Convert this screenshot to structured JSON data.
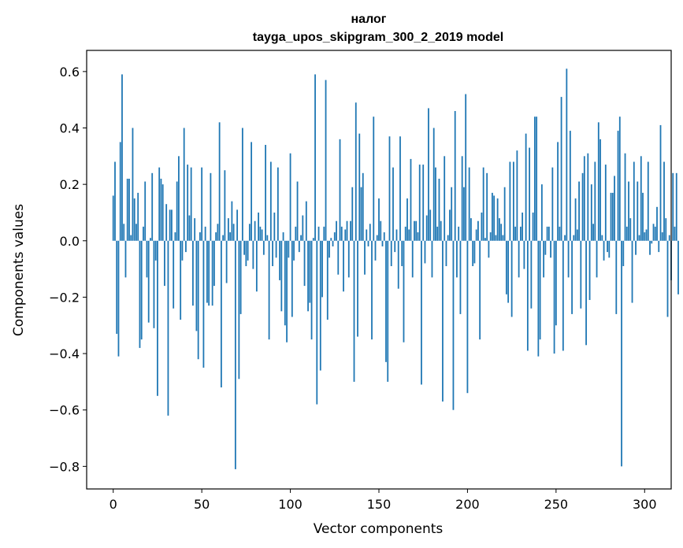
{
  "chart_data": {
    "type": "bar",
    "title": "налог",
    "subtitle": "tayga_upos_skipgram_300_2_2019 model",
    "xlabel": "Vector components",
    "ylabel": "Components values",
    "xlim": [
      -15,
      315
    ],
    "ylim": [
      -0.88,
      0.675
    ],
    "xticks": [
      0,
      50,
      100,
      150,
      200,
      250,
      300
    ],
    "xtick_labels": [
      "0",
      "50",
      "100",
      "150",
      "200",
      "250",
      "300"
    ],
    "yticks": [
      -0.8,
      -0.6,
      -0.4,
      -0.2,
      0.0,
      0.2,
      0.4,
      0.6
    ],
    "ytick_labels": [
      "−0.8",
      "−0.6",
      "−0.4",
      "−0.2",
      "0.0",
      "0.2",
      "0.4",
      "0.6"
    ],
    "bar_color": "#1f77b4",
    "values": [
      0.16,
      0.28,
      -0.33,
      -0.41,
      0.35,
      0.59,
      0.06,
      -0.13,
      0.22,
      0.22,
      0.02,
      0.4,
      0.15,
      0.06,
      0.17,
      -0.38,
      -0.35,
      0.05,
      0.21,
      -0.13,
      -0.29,
      0.01,
      0.24,
      -0.31,
      -0.07,
      -0.55,
      0.26,
      0.22,
      0.2,
      -0.16,
      0.13,
      -0.62,
      0.11,
      0.11,
      -0.24,
      0.03,
      0.21,
      0.3,
      -0.28,
      -0.07,
      0.4,
      -0.04,
      0.27,
      0.09,
      0.26,
      -0.23,
      0.08,
      -0.32,
      -0.42,
      0.03,
      0.26,
      -0.45,
      0.05,
      -0.22,
      -0.23,
      0.24,
      -0.23,
      -0.16,
      0.03,
      0.06,
      0.42,
      -0.52,
      0.02,
      0.25,
      -0.15,
      0.08,
      0.03,
      0.14,
      0.06,
      -0.81,
      0.11,
      -0.49,
      -0.26,
      0.4,
      -0.05,
      -0.09,
      -0.07,
      0.06,
      0.35,
      -0.1,
      0.07,
      -0.18,
      0.1,
      0.05,
      0.04,
      -0.05,
      0.34,
      0.02,
      -0.35,
      0.28,
      -0.09,
      0.1,
      -0.06,
      0.26,
      -0.14,
      -0.25,
      0.03,
      -0.3,
      -0.36,
      -0.06,
      0.31,
      -0.27,
      -0.07,
      0.05,
      0.21,
      -0.04,
      0.02,
      0.09,
      -0.16,
      0.14,
      -0.25,
      -0.22,
      -0.35,
      0.01,
      0.59,
      -0.58,
      0.05,
      -0.46,
      -0.2,
      0.05,
      0.57,
      -0.28,
      -0.06,
      0.01,
      -0.02,
      0.03,
      0.07,
      -0.12,
      0.36,
      0.05,
      -0.18,
      0.04,
      0.07,
      -0.13,
      0.07,
      0.19,
      -0.5,
      0.49,
      -0.34,
      0.38,
      0.19,
      0.24,
      -0.12,
      0.04,
      -0.02,
      0.06,
      -0.35,
      0.44,
      -0.07,
      0.02,
      0.15,
      0.07,
      -0.02,
      0.03,
      -0.43,
      -0.5,
      0.37,
      -0.09,
      0.26,
      -0.04,
      0.04,
      -0.17,
      0.37,
      -0.09,
      -0.36,
      0.05,
      0.15,
      0.04,
      0.29,
      -0.13,
      0.07,
      0.07,
      0.03,
      0.27,
      -0.51,
      0.27,
      -0.08,
      0.09,
      0.47,
      0.11,
      -0.13,
      0.4,
      0.26,
      0.05,
      0.22,
      0.07,
      -0.57,
      0.3,
      -0.09,
      0.02,
      0.11,
      0.19,
      -0.6,
      0.46,
      -0.13,
      0.05,
      -0.26,
      0.3,
      0.19,
      0.52,
      -0.54,
      0.26,
      0.08,
      -0.09,
      -0.08,
      0.04,
      0.07,
      -0.35,
      0.1,
      0.26,
      0.01,
      0.24,
      -0.06,
      0.03,
      0.17,
      0.16,
      0.02,
      0.15,
      0.08,
      0.06,
      0.02,
      0.19,
      -0.19,
      -0.22,
      0.28,
      -0.27,
      0.28,
      0.05,
      0.32,
      -0.13,
      0.05,
      0.1,
      -0.1,
      0.38,
      -0.39,
      0.33,
      -0.24,
      0.1,
      0.44,
      0.44,
      -0.41,
      -0.35,
      0.2,
      -0.13,
      -0.05,
      0.05,
      0.05,
      -0.06,
      0.26,
      -0.4,
      -0.3,
      0.35,
      0.05,
      0.51,
      -0.39,
      0.02,
      0.61,
      -0.13,
      0.39,
      -0.26,
      0.02,
      0.15,
      0.04,
      0.21,
      -0.24,
      0.24,
      0.3,
      -0.37,
      0.31,
      -0.21,
      0.2,
      0.06,
      0.28,
      -0.13,
      0.42,
      0.36,
      0.02,
      -0.07,
      0.27,
      -0.04,
      -0.06,
      0.17,
      0.17,
      0.23,
      -0.26,
      0.39,
      0.44,
      -0.8,
      -0.09,
      0.31,
      0.05,
      0.21,
      0.08,
      -0.22,
      0.28,
      -0.05,
      0.21,
      0.02,
      0.3,
      0.17,
      0.03,
      0.04,
      0.28,
      -0.05,
      -0.01,
      0.06,
      0.05,
      0.12,
      -0.04,
      0.41,
      0.03,
      0.28,
      0.08,
      -0.27,
      0.02,
      -0.14,
      0.24,
      0.05,
      0.24,
      -0.19
    ]
  }
}
